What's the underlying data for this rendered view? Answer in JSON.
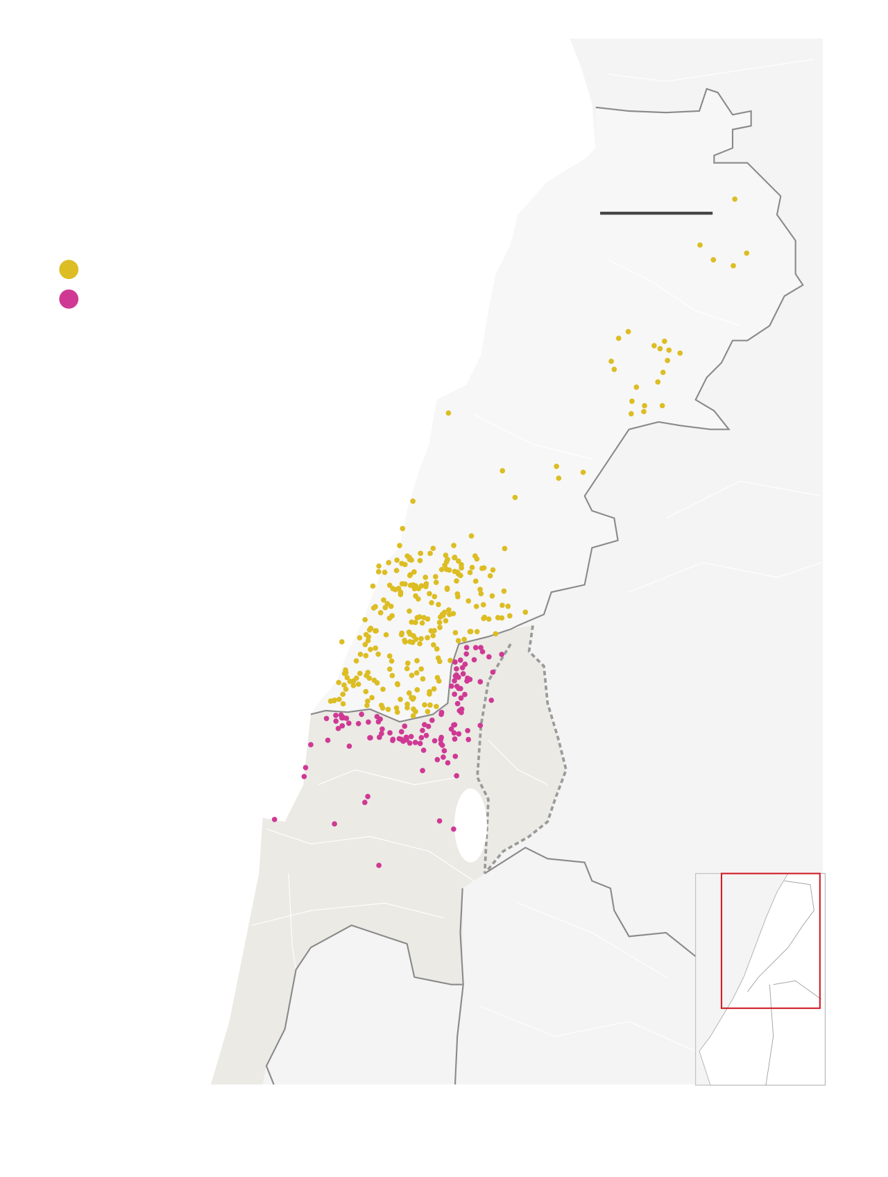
{
  "legend": {
    "items": [
      {
        "key": "yellow",
        "color": "#dcbd23"
      },
      {
        "key": "magenta",
        "color": "#cf3994"
      }
    ]
  },
  "colors": {
    "sea": "#ffffff",
    "land_other": "#f4f4f4",
    "land_highlight": "#ebeae5",
    "border": "#8a8a8a",
    "scale_bar": "#444444",
    "inset_frame": "#d0202a"
  },
  "scale_bar": {
    "icon": "scale-bar"
  },
  "inset": {
    "icon": "locator-inset-map"
  }
}
